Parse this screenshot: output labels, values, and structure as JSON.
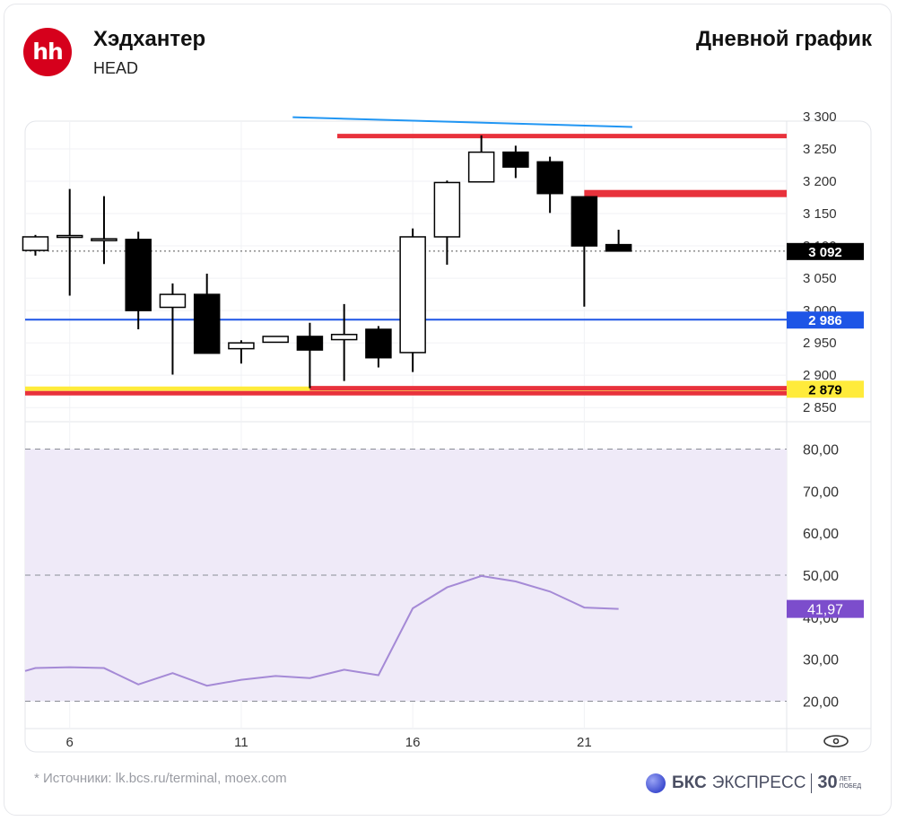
{
  "header": {
    "logo_text": "hh",
    "company": "Хэдхантер",
    "ticker": "HEAD",
    "timeframe": "Дневной график"
  },
  "footer": {
    "source": "* Источники: lk.bcs.ru/terminal, moex.com",
    "brand_main": "БКС",
    "brand_sub": "ЭКСПРЕСС",
    "brand_years": "30",
    "brand_small_1": "ЛЕТ",
    "brand_small_2": "ПОБЕД"
  },
  "colors": {
    "up_candle": "#ffffff",
    "down_candle": "#000000",
    "resistance": "#e8323c",
    "support_blue": "#1e55e6",
    "support_yellow": "#ffeb3b",
    "trend_line": "#2196f3",
    "rsi_line": "#a58ad6",
    "rsi_fill": "#efeaf8",
    "rsi_badge": "#7c4dcc"
  },
  "chart_data": [
    {
      "type": "candlestick",
      "x_ticks": [
        "6",
        "11",
        "16",
        "21"
      ],
      "x_tick_days": [
        6,
        11,
        16,
        21
      ],
      "x_range": [
        4.7,
        26.9
      ],
      "y_ticks": [
        "2 850",
        "2 900",
        "2 950",
        "3 000",
        "3 050",
        "3 100",
        "3 150",
        "3 200",
        "3 250",
        "3 300"
      ],
      "y_tick_values": [
        2850,
        2900,
        2950,
        3000,
        3050,
        3100,
        3150,
        3200,
        3250,
        3300
      ],
      "ylim": [
        2835,
        3293
      ],
      "candles": [
        {
          "day": 5,
          "open": 3093,
          "high": 3117,
          "low": 3085,
          "close": 3114
        },
        {
          "day": 6,
          "open": 3114,
          "high": 3188,
          "low": 3023,
          "close": 3116
        },
        {
          "day": 7,
          "open": 3110,
          "high": 3177,
          "low": 3072,
          "close": 3111
        },
        {
          "day": 8,
          "open": 3110,
          "high": 3122,
          "low": 2971,
          "close": 3000
        },
        {
          "day": 9,
          "open": 3005,
          "high": 3042,
          "low": 2901,
          "close": 3025
        },
        {
          "day": 10,
          "open": 3025,
          "high": 3057,
          "low": 2935,
          "close": 2934
        },
        {
          "day": 11,
          "open": 2941,
          "high": 2954,
          "low": 2918,
          "close": 2950
        },
        {
          "day": 12,
          "open": 2951,
          "high": 2960,
          "low": 2951,
          "close": 2960
        },
        {
          "day": 13,
          "open": 2960,
          "high": 2981,
          "low": 2880,
          "close": 2939
        },
        {
          "day": 14,
          "open": 2955,
          "high": 3010,
          "low": 2891,
          "close": 2963
        },
        {
          "day": 15,
          "open": 2971,
          "high": 2976,
          "low": 2912,
          "close": 2927
        },
        {
          "day": 16,
          "open": 2935,
          "high": 3127,
          "low": 2905,
          "close": 3114
        },
        {
          "day": 17,
          "open": 3114,
          "high": 3201,
          "low": 3071,
          "close": 3198
        },
        {
          "day": 18,
          "open": 3199,
          "high": 3271,
          "low": 3199,
          "close": 3245
        },
        {
          "day": 19,
          "open": 3245,
          "high": 3255,
          "low": 3205,
          "close": 3222
        },
        {
          "day": 20,
          "open": 3230,
          "high": 3238,
          "low": 3151,
          "close": 3181
        },
        {
          "day": 21,
          "open": 3176,
          "high": 3176,
          "low": 3006,
          "close": 3100
        },
        {
          "day": 22,
          "open": 3102,
          "high": 3125,
          "low": 3092,
          "close": 3092
        }
      ],
      "last_price": 3092,
      "last_price_label": "3 092",
      "levels": [
        {
          "name": "resistance-upper",
          "value": 3270,
          "from_day": 13.8,
          "to_day": 26.9,
          "color": "#e8323c"
        },
        {
          "name": "resistance-middle",
          "value": 3181,
          "from_day": 21,
          "to_day": 26.9,
          "color": "#e8323c"
        },
        {
          "name": "support-blue",
          "value": 2986,
          "from_day": 4.7,
          "to_day": 26.9,
          "color": "#1e55e6",
          "label": "2 986"
        },
        {
          "name": "support-yellow",
          "value": 2879,
          "from_day": 4.7,
          "to_day": 26.9,
          "color": "#ffeb3b",
          "label": "2 879"
        },
        {
          "name": "support-red",
          "value": 2880,
          "from_day": 13,
          "to_day": 26.9,
          "color": "#e8323c"
        }
      ],
      "trend_line": {
        "from": {
          "day": 12.5,
          "value": 3299
        },
        "to": {
          "day": 22.4,
          "value": 3284
        }
      }
    },
    {
      "type": "line",
      "name": "RSI",
      "x": [
        4.7,
        5,
        6,
        7,
        8,
        9,
        10,
        11,
        12,
        13,
        14,
        15,
        16,
        17,
        18,
        19,
        20,
        21,
        22
      ],
      "values": [
        27.2,
        27.9,
        28.1,
        27.9,
        24,
        26.7,
        23.7,
        25.1,
        26,
        25.5,
        27.5,
        26.2,
        42.1,
        47.1,
        49.8,
        48.5,
        46.1,
        42.3,
        41.97
      ],
      "y_ticks": [
        "20,00",
        "30,00",
        "40,00",
        "50,00",
        "60,00",
        "70,00",
        "80,00"
      ],
      "y_tick_values": [
        20,
        30,
        40,
        50,
        60,
        70,
        80
      ],
      "ylim": [
        13.5,
        86.5
      ],
      "band": [
        20,
        80
      ],
      "dashed_levels": [
        20,
        50,
        80
      ],
      "last_value_label": "41,97"
    }
  ]
}
